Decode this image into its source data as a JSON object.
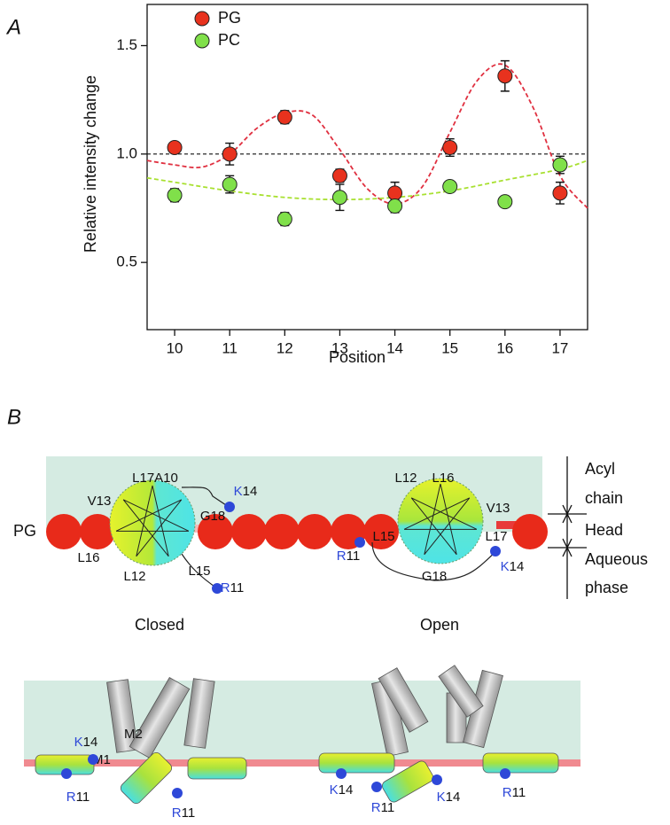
{
  "panel_labels": [
    "A",
    "B"
  ],
  "chart_data": {
    "type": "scatter",
    "ylabel": "Relative intensity change",
    "xlabel": "Position",
    "x": [
      10,
      11,
      12,
      13,
      14,
      15,
      16,
      17
    ],
    "series": [
      {
        "name": "PG",
        "color": "#e8321e",
        "values": [
          1.03,
          1.0,
          1.17,
          0.9,
          0.82,
          1.03,
          1.36,
          0.82
        ],
        "errors": [
          0.02,
          0.05,
          0.03,
          0.03,
          0.05,
          0.04,
          0.07,
          0.05
        ]
      },
      {
        "name": "PC",
        "color": "#80e04a",
        "values": [
          0.81,
          0.86,
          0.7,
          0.8,
          0.76,
          0.85,
          0.78,
          0.95
        ],
        "errors": [
          0.03,
          0.04,
          0.03,
          0.06,
          0.03,
          0.02,
          0.01,
          0.04
        ]
      }
    ],
    "fits": [
      {
        "color": "#e03040",
        "x": [
          9.5,
          10,
          10.5,
          11,
          11.5,
          12,
          12.5,
          13,
          13.5,
          14,
          14.5,
          15,
          15.5,
          16,
          16.5,
          17,
          17.5
        ],
        "values": [
          0.97,
          0.95,
          0.94,
          1.0,
          1.12,
          1.19,
          1.18,
          1.02,
          0.84,
          0.77,
          0.85,
          1.1,
          1.34,
          1.41,
          1.22,
          0.9,
          0.75
        ]
      },
      {
        "color": "#a8e030",
        "x": [
          9.5,
          10,
          11,
          12,
          13,
          14,
          15,
          16,
          17,
          17.5
        ],
        "values": [
          0.89,
          0.87,
          0.83,
          0.8,
          0.79,
          0.8,
          0.83,
          0.88,
          0.93,
          0.97
        ]
      }
    ],
    "reference_line": 1,
    "xlim": [
      9.5,
      17.5
    ],
    "ylim": [
      0.19,
      1.69
    ],
    "xticks": [
      10,
      11,
      12,
      13,
      14,
      15,
      16,
      17
    ],
    "yticks": [
      0.5,
      {
        "value": 1,
        "label": "1.0"
      },
      1.5
    ],
    "legend": "top-left"
  },
  "diagram": {
    "lipid_label": "PG",
    "closed_residues": [
      "L17A10",
      "V13",
      "G18",
      "L16",
      "L12",
      "L15"
    ],
    "closed_charged": [
      {
        "aa": "K",
        "pos": "14"
      },
      {
        "aa": "R",
        "pos": "11"
      }
    ],
    "open_residues": [
      "L12",
      "L16",
      "V13",
      "L15",
      "L17",
      "G18"
    ],
    "open_charged": [
      {
        "aa": "R",
        "pos": "11"
      },
      {
        "aa": "K",
        "pos": "14"
      }
    ],
    "scale": {
      "acyl": [
        "Acyl",
        "chain"
      ],
      "head": "Head",
      "aqueous": [
        "Aqueous",
        "phase"
      ]
    },
    "states": [
      "Closed",
      "Open"
    ],
    "helix_labels": [
      "M2",
      "M1"
    ],
    "bottom_charged": [
      {
        "aa": "K",
        "pos": "14"
      },
      {
        "aa": "R",
        "pos": "11"
      },
      {
        "aa": "R",
        "pos": "11"
      },
      {
        "aa": "K",
        "pos": "14"
      },
      {
        "aa": "R",
        "pos": "11"
      },
      {
        "aa": "K",
        "pos": "14"
      },
      {
        "aa": "R",
        "pos": "11"
      }
    ]
  }
}
